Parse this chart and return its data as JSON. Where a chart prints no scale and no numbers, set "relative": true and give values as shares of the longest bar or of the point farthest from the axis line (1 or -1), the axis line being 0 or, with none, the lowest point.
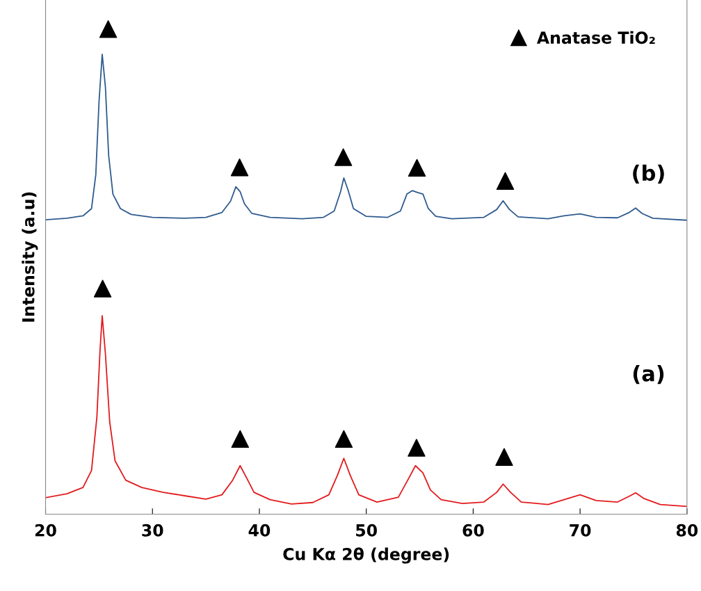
{
  "chart_data": {
    "type": "line",
    "relative": true,
    "xlabel": "Cu Kα 2θ (degree)",
    "ylabel": "Intensity (a.u)",
    "xlim": [
      20,
      80
    ],
    "xticks": [
      20,
      30,
      40,
      50,
      60,
      70,
      80
    ],
    "grid": false,
    "legend": "top right",
    "tick_labels": "x",
    "series": [
      {
        "color": "#2f5b8f",
        "x": [
          20,
          22,
          23.5,
          24.3,
          24.7,
          25.0,
          25.3,
          25.6,
          25.9,
          26.3,
          27,
          28,
          30,
          33,
          35,
          36.5,
          37.3,
          37.8,
          38.2,
          38.6,
          39.3,
          41,
          44,
          46,
          47,
          47.6,
          47.9,
          48.3,
          48.8,
          50,
          52,
          53.2,
          53.8,
          54.3,
          54.8,
          55.3,
          55.8,
          56.5,
          58,
          61,
          62.2,
          62.8,
          63.4,
          64.2,
          67,
          68.5,
          70,
          71.5,
          73.5,
          74.6,
          75.2,
          75.8,
          76.8,
          80
        ],
        "values": [
          0.607,
          0.61,
          0.615,
          0.63,
          0.7,
          0.85,
          0.948,
          0.88,
          0.74,
          0.66,
          0.63,
          0.618,
          0.612,
          0.61,
          0.612,
          0.622,
          0.645,
          0.675,
          0.665,
          0.64,
          0.62,
          0.612,
          0.609,
          0.612,
          0.625,
          0.665,
          0.693,
          0.668,
          0.63,
          0.614,
          0.612,
          0.625,
          0.66,
          0.667,
          0.663,
          0.66,
          0.63,
          0.614,
          0.609,
          0.612,
          0.628,
          0.646,
          0.628,
          0.613,
          0.609,
          0.615,
          0.619,
          0.612,
          0.611,
          0.622,
          0.631,
          0.62,
          0.61,
          0.606
        ]
      },
      {
        "color": "#e31a1c",
        "x": [
          20,
          22,
          23.5,
          24.3,
          24.8,
          25.1,
          25.3,
          25.6,
          26,
          26.5,
          27.5,
          29,
          31,
          33,
          35,
          36.5,
          37.5,
          38.2,
          38.8,
          39.5,
          41,
          43,
          45,
          46.5,
          47.3,
          47.9,
          48.5,
          49.3,
          51,
          53,
          54,
          54.6,
          55.3,
          56,
          57,
          59,
          61,
          62.2,
          62.8,
          63.5,
          64.5,
          67,
          68.5,
          70,
          71.5,
          73.5,
          74.6,
          75.2,
          76,
          77.5,
          80
        ],
        "values": [
          0.034,
          0.042,
          0.055,
          0.09,
          0.2,
          0.34,
          0.409,
          0.33,
          0.19,
          0.11,
          0.07,
          0.055,
          0.045,
          0.038,
          0.031,
          0.04,
          0.07,
          0.1,
          0.075,
          0.045,
          0.03,
          0.021,
          0.024,
          0.04,
          0.08,
          0.115,
          0.08,
          0.04,
          0.025,
          0.035,
          0.075,
          0.1,
          0.085,
          0.05,
          0.03,
          0.022,
          0.025,
          0.045,
          0.062,
          0.045,
          0.025,
          0.02,
          0.03,
          0.04,
          0.028,
          0.025,
          0.037,
          0.044,
          0.032,
          0.02,
          0.016
        ]
      },
      {
        "type": "scatter",
        "name": "Anatase TiO₂",
        "color": "#000000",
        "marker": "triangle",
        "x": [
          25.86,
          38.15,
          47.85,
          54.74,
          63.0,
          25.34,
          38.2,
          47.9,
          54.7,
          62.9
        ],
        "values": [
          1.0,
          0.715,
          0.736,
          0.714,
          0.687,
          0.465,
          0.155,
          0.155,
          0.137,
          0.118
        ]
      }
    ],
    "annotations": [
      "(b)",
      "(a)"
    ]
  }
}
